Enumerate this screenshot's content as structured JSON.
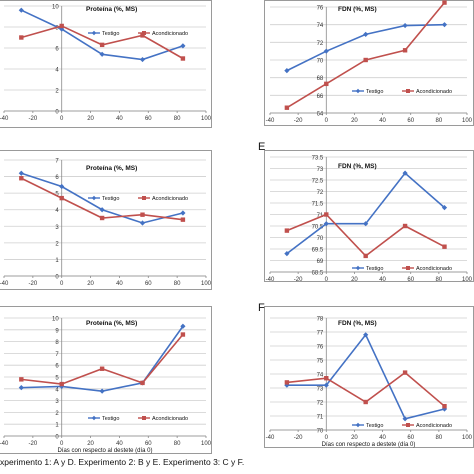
{
  "colors": {
    "testigo": "#4472C4",
    "acondicionado": "#C0504D",
    "grid": "#cfcfcf",
    "frame": "#9a9a9a"
  },
  "caption": "xperimento 1: A y D. Experimento 2: B y E. Experimento 3: C y F.",
  "chart_data": [
    {
      "id": "A",
      "type": "line",
      "title": "Proteína (%, MS)",
      "x_ticks": [
        -40,
        -20,
        0,
        20,
        40,
        60,
        80,
        100
      ],
      "xlim": [
        -40,
        100
      ],
      "ylim": [
        0,
        10
      ],
      "y_ticks": [
        0,
        2,
        4,
        6,
        8,
        10
      ],
      "legend": "inside-right",
      "series": [
        {
          "name": "Testigo",
          "x": [
            -28,
            0,
            28,
            56,
            84
          ],
          "y": [
            9.6,
            7.8,
            5.4,
            4.9,
            6.2
          ]
        },
        {
          "name": "Acondicionado",
          "x": [
            -28,
            0,
            28,
            56,
            84
          ],
          "y": [
            7.0,
            8.1,
            6.3,
            7.2,
            5.0
          ]
        }
      ]
    },
    {
      "id": "D",
      "type": "line",
      "title": "FDN (%, MS)",
      "x_ticks": [
        -40,
        -20,
        0,
        20,
        40,
        60,
        80,
        100
      ],
      "xlim": [
        -40,
        100
      ],
      "ylim": [
        64,
        76
      ],
      "y_ticks": [
        64,
        66,
        68,
        70,
        72,
        74,
        76
      ],
      "legend": "inside-right",
      "series": [
        {
          "name": "Testigo",
          "x": [
            -28,
            0,
            28,
            56,
            84
          ],
          "y": [
            68.8,
            71.0,
            72.9,
            73.9,
            74.0
          ]
        },
        {
          "name": "Acondicionado",
          "x": [
            -28,
            0,
            28,
            56,
            84
          ],
          "y": [
            64.6,
            67.3,
            70.0,
            71.1,
            76.5
          ]
        }
      ]
    },
    {
      "id": "B",
      "type": "line",
      "title": "Proteína (%, MS)",
      "x_ticks": [
        -40,
        -20,
        0,
        20,
        40,
        60,
        80,
        100
      ],
      "xlim": [
        -40,
        100
      ],
      "ylim": [
        0,
        7
      ],
      "y_ticks": [
        0,
        1,
        2,
        3,
        4,
        5,
        6,
        7
      ],
      "legend": "inside-right",
      "series": [
        {
          "name": "Testigo",
          "x": [
            -28,
            0,
            28,
            56,
            84
          ],
          "y": [
            6.2,
            5.4,
            4.0,
            3.2,
            3.8
          ]
        },
        {
          "name": "Acondicionado",
          "x": [
            -28,
            0,
            28,
            56,
            84
          ],
          "y": [
            5.9,
            4.7,
            3.5,
            3.7,
            3.4
          ]
        }
      ]
    },
    {
      "id": "E",
      "type": "line",
      "title": "FDN (%, MS)",
      "x_ticks": [
        -40,
        -20,
        0,
        20,
        40,
        60,
        80,
        100
      ],
      "xlim": [
        -40,
        100
      ],
      "ylim": [
        68.5,
        73.5
      ],
      "y_ticks": [
        68.5,
        69,
        69.5,
        70,
        70.5,
        71,
        71.5,
        72,
        72.5,
        73,
        73.5
      ],
      "y_tick_labels": [
        "68.5",
        "69",
        "69.5",
        "70",
        "70.5",
        "71",
        "71.5",
        "72",
        "72.5",
        "73",
        "73.5"
      ],
      "legend": "inside-right",
      "series": [
        {
          "name": "Testigo",
          "x": [
            -28,
            0,
            28,
            56,
            84
          ],
          "y": [
            69.3,
            70.6,
            70.6,
            72.8,
            71.3
          ]
        },
        {
          "name": "Acondicionado",
          "x": [
            -28,
            0,
            28,
            56,
            84
          ],
          "y": [
            70.3,
            71.0,
            69.2,
            70.5,
            69.6
          ]
        }
      ]
    },
    {
      "id": "C",
      "type": "line",
      "title": "Proteína (%, MS)",
      "x_ticks": [
        -40,
        -20,
        0,
        20,
        40,
        60,
        80,
        100
      ],
      "xlim": [
        -40,
        100
      ],
      "ylim": [
        0,
        10
      ],
      "y_ticks": [
        0,
        1,
        2,
        3,
        4,
        5,
        6,
        7,
        8,
        9,
        10
      ],
      "xlabel": "Días con respecto al destete (día 0)",
      "legend": "inside-right",
      "series": [
        {
          "name": "Testigo",
          "x": [
            -28,
            0,
            28,
            56,
            84
          ],
          "y": [
            4.1,
            4.2,
            3.8,
            4.5,
            9.3
          ]
        },
        {
          "name": "Acondicionado",
          "x": [
            -28,
            0,
            28,
            56,
            84
          ],
          "y": [
            4.8,
            4.4,
            5.7,
            4.5,
            8.6
          ]
        }
      ]
    },
    {
      "id": "F",
      "type": "line",
      "title": "FDN (%, MS)",
      "x_ticks": [
        -40,
        -20,
        0,
        20,
        40,
        60,
        80,
        100
      ],
      "xlim": [
        -40,
        100
      ],
      "ylim": [
        70,
        78
      ],
      "y_ticks": [
        70,
        71,
        72,
        73,
        74,
        75,
        76,
        77,
        78
      ],
      "xlabel": "Días con respecto a destete (día 0)",
      "legend": "inside-right",
      "series": [
        {
          "name": "Testigo",
          "x": [
            -28,
            0,
            28,
            56,
            84
          ],
          "y": [
            73.2,
            73.2,
            76.8,
            70.8,
            71.5
          ]
        },
        {
          "name": "Acondicionado",
          "x": [
            -28,
            0,
            28,
            56,
            84
          ],
          "y": [
            73.4,
            73.7,
            72.0,
            74.1,
            71.7
          ]
        }
      ]
    }
  ]
}
